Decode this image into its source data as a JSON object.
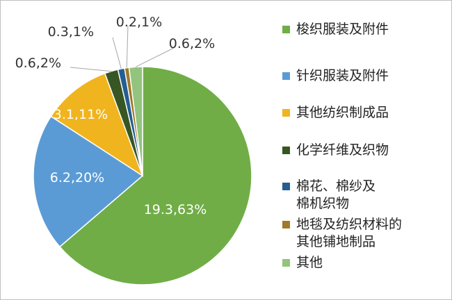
{
  "colors": {
    "background": "#ffffff",
    "frame_border": "#bfbfbf",
    "slice_edge": "#ffffff",
    "leader_line": "#a6a6a6",
    "inner_label": "#ffffff",
    "outer_label": "#333333"
  },
  "chart_data": {
    "type": "pie",
    "title": "",
    "start_angle_deg": 0,
    "direction": "clockwise",
    "legend_position": "right",
    "slices": [
      {
        "name": "梭织服装及附件",
        "value": 19.3,
        "percent": 63,
        "label": "19.3,63%",
        "color": "#70ad47",
        "label_placement": "inside"
      },
      {
        "name": "针织服装及附件",
        "value": 6.2,
        "percent": 20,
        "label": "6.2,20%",
        "color": "#5b9bd5",
        "label_placement": "inside"
      },
      {
        "name": "其他纺织制成品",
        "value": 3.1,
        "percent": 11,
        "label": "3.1,11%",
        "color": "#f0b41e",
        "label_placement": "inside"
      },
      {
        "name": "化学纤维及织物",
        "value": 0.6,
        "percent": 2,
        "label": "0.6,2%",
        "color": "#375623",
        "label_placement": "outside"
      },
      {
        "name": "棉花、棉纱及\n棉机织物",
        "value": 0.3,
        "percent": 1,
        "label": "0.3,1%",
        "color": "#255e91",
        "label_placement": "outside"
      },
      {
        "name": "地毯及纺织材料的\n其他铺地制品",
        "value": 0.2,
        "percent": 1,
        "label": "0.2,1%",
        "color": "#9e7a2a",
        "label_placement": "outside"
      },
      {
        "name": "其他",
        "value": 0.6,
        "percent": 2,
        "label": "0.6,2%",
        "color": "#93c47d",
        "label_placement": "outside"
      }
    ]
  }
}
